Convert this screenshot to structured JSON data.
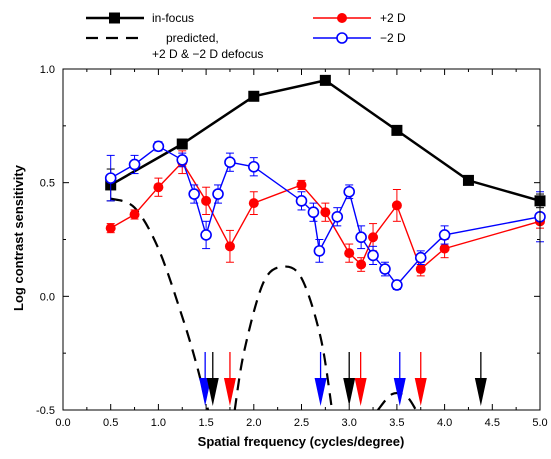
{
  "chart_data": {
    "type": "line",
    "xlabel": "Spatial frequency (cycles/degree)",
    "ylabel": "Log contrast sensitivity",
    "xlim": [
      0.0,
      5.0
    ],
    "ylim": [
      -0.5,
      1.0
    ],
    "x_ticks": [
      "0.0",
      "0.5",
      "1.0",
      "1.5",
      "2.0",
      "2.5",
      "3.0",
      "3.5",
      "4.0",
      "4.5",
      "5.0"
    ],
    "y_ticks": [
      "-0.5",
      "0.0",
      "0.5",
      "1.0"
    ],
    "grid": false,
    "legend_position": "top",
    "series": [
      {
        "name": "in-focus",
        "color": "#000000",
        "marker": "filled-square",
        "points": [
          [
            0.5,
            0.49
          ],
          [
            1.25,
            0.67
          ],
          [
            2.0,
            0.88
          ],
          [
            2.75,
            0.95
          ],
          [
            3.5,
            0.73
          ],
          [
            4.25,
            0.51
          ],
          [
            5.0,
            0.42
          ]
        ],
        "error": [
          0.07,
          0.01,
          0.01,
          0.01,
          0.01,
          0.01,
          0.03
        ]
      },
      {
        "name": "+2 D",
        "color": "#ff0000",
        "marker": "filled-circle",
        "points": [
          [
            0.5,
            0.3
          ],
          [
            0.75,
            0.36
          ],
          [
            1.0,
            0.48
          ],
          [
            1.25,
            0.59
          ],
          [
            1.5,
            0.42
          ],
          [
            1.75,
            0.22
          ],
          [
            2.0,
            0.41
          ],
          [
            2.5,
            0.49
          ],
          [
            2.75,
            0.37
          ],
          [
            3.0,
            0.19
          ],
          [
            3.125,
            0.14
          ],
          [
            3.25,
            0.26
          ],
          [
            3.5,
            0.4
          ],
          [
            3.75,
            0.12
          ],
          [
            4.0,
            0.21
          ],
          [
            5.0,
            0.33
          ]
        ],
        "error": [
          0.02,
          0.02,
          0.04,
          0.05,
          0.06,
          0.07,
          0.05,
          0.02,
          0.04,
          0.04,
          0.03,
          0.06,
          0.07,
          0.03,
          0.04,
          0.03
        ]
      },
      {
        "name": "−2 D",
        "color": "#0000ff",
        "marker": "open-circle",
        "points": [
          [
            0.5,
            0.52
          ],
          [
            0.75,
            0.58
          ],
          [
            1.0,
            0.66
          ],
          [
            1.25,
            0.6
          ],
          [
            1.375,
            0.45
          ],
          [
            1.5,
            0.27
          ],
          [
            1.625,
            0.45
          ],
          [
            1.75,
            0.59
          ],
          [
            2.0,
            0.57
          ],
          [
            2.5,
            0.42
          ],
          [
            2.625,
            0.37
          ],
          [
            2.6875,
            0.2
          ],
          [
            2.875,
            0.35
          ],
          [
            3.0,
            0.46
          ],
          [
            3.125,
            0.26
          ],
          [
            3.25,
            0.18
          ],
          [
            3.375,
            0.12
          ],
          [
            3.5,
            0.05
          ],
          [
            3.75,
            0.17
          ],
          [
            4.0,
            0.27
          ],
          [
            5.0,
            0.35
          ]
        ],
        "error": [
          0.1,
          0.04,
          0.02,
          0.03,
          0.04,
          0.06,
          0.04,
          0.04,
          0.04,
          0.04,
          0.04,
          0.05,
          0.04,
          0.03,
          0.05,
          0.04,
          0.03,
          0.02,
          0.03,
          0.04,
          0.11
        ]
      },
      {
        "name": "predicted,\n+2 D & −2 D defocus",
        "color": "#000000",
        "style": "dashed",
        "segments": [
          [
            [
              0.5,
              0.43
            ],
            [
              0.75,
              0.39
            ],
            [
              1.0,
              0.21
            ],
            [
              1.25,
              -0.09
            ],
            [
              1.4,
              -0.3
            ],
            [
              1.52,
              -0.5
            ]
          ],
          [
            [
              1.8,
              -0.5
            ],
            [
              1.9,
              -0.24
            ],
            [
              2.1,
              0.06
            ],
            [
              2.3,
              0.13
            ],
            [
              2.5,
              0.08
            ],
            [
              2.7,
              -0.18
            ],
            [
              2.82,
              -0.5
            ]
          ],
          [
            [
              3.3,
              -0.5
            ],
            [
              3.45,
              -0.43
            ],
            [
              3.6,
              -0.44
            ],
            [
              3.7,
              -0.5
            ]
          ]
        ]
      }
    ],
    "arrows": [
      {
        "x": 1.49,
        "color": "#0000ff"
      },
      {
        "x": 1.57,
        "color": "#000000"
      },
      {
        "x": 1.75,
        "color": "#ff0000"
      },
      {
        "x": 2.7,
        "color": "#0000ff"
      },
      {
        "x": 3.0,
        "color": "#000000"
      },
      {
        "x": 3.12,
        "color": "#ff0000"
      },
      {
        "x": 3.53,
        "color": "#0000ff"
      },
      {
        "x": 3.75,
        "color": "#ff0000"
      },
      {
        "x": 4.38,
        "color": "#000000"
      }
    ]
  },
  "legend": {
    "in_focus": "in-focus",
    "predicted_line1": "predicted,",
    "predicted_line2": "+2 D & −2 D defocus",
    "plus2": "+2 D",
    "minus2": "−2 D"
  }
}
